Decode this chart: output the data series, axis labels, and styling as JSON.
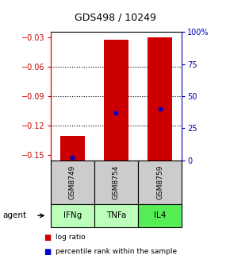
{
  "title": "GDS498 / 10249",
  "samples": [
    "GSM8749",
    "GSM8754",
    "GSM8759"
  ],
  "agents": [
    "IFNg",
    "TNFa",
    "IL4"
  ],
  "ylim_left": [
    -0.155,
    -0.025
  ],
  "ylim_right": [
    0,
    100
  ],
  "yticks_left": [
    -0.15,
    -0.12,
    -0.09,
    -0.06,
    -0.03
  ],
  "yticks_right": [
    0,
    25,
    50,
    75,
    100
  ],
  "log_ratio_tops": [
    -0.13,
    -0.033,
    -0.03
  ],
  "log_ratio_bases": [
    -0.155,
    -0.155,
    -0.155
  ],
  "percentile_ranks": [
    2,
    37,
    40
  ],
  "bar_color": "#cc0000",
  "blue_color": "#0000cc",
  "gsm_bg": "#cccccc",
  "agent_bg_colors": [
    "#bbffbb",
    "#bbffbb",
    "#55ee55"
  ],
  "legend_items": [
    "log ratio",
    "percentile rank within the sample"
  ],
  "grid_yticks": [
    -0.06,
    -0.09,
    -0.12
  ],
  "left_axis_color": "#cc0000",
  "right_axis_color": "#0000bb",
  "title_fontsize": 9,
  "tick_fontsize": 7,
  "bar_width": 0.55
}
